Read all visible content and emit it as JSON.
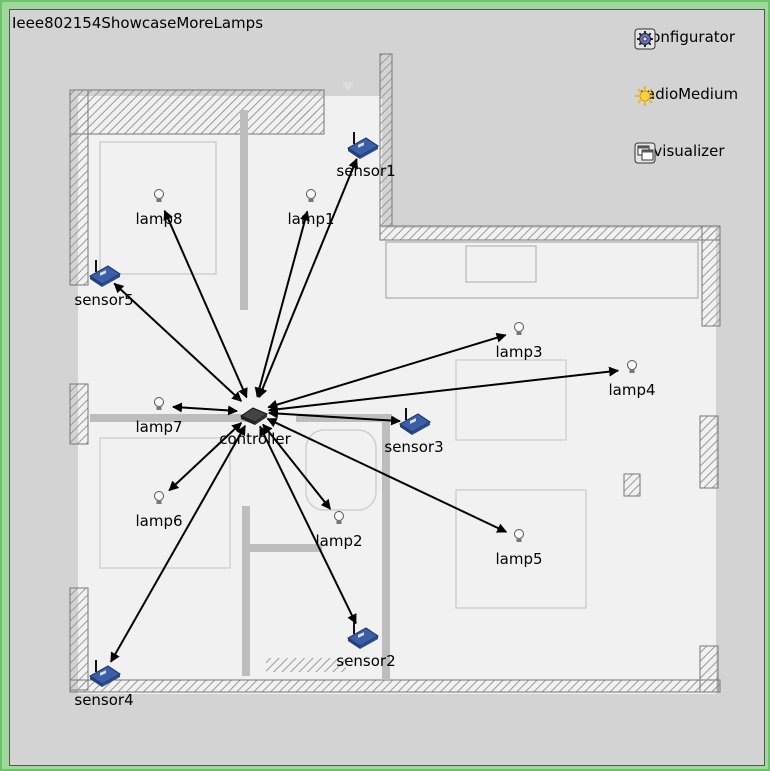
{
  "network": {
    "title": "Ieee802154ShowcaseMoreLamps"
  },
  "tools": [
    {
      "id": "configurator",
      "label": "configurator",
      "icon": "gear-icon"
    },
    {
      "id": "radioMedium",
      "label": "radioMedium",
      "icon": "sun-icon"
    },
    {
      "id": "visualizer",
      "label": "visualizer",
      "icon": "windows-icon"
    }
  ],
  "nodes": [
    {
      "id": "controller",
      "label": "controller",
      "kind": "router"
    },
    {
      "id": "sensor1",
      "label": "sensor1",
      "kind": "sensor"
    },
    {
      "id": "sensor2",
      "label": "sensor2",
      "kind": "sensor"
    },
    {
      "id": "sensor3",
      "label": "sensor3",
      "kind": "sensor"
    },
    {
      "id": "sensor4",
      "label": "sensor4",
      "kind": "sensor"
    },
    {
      "id": "sensor5",
      "label": "sensor5",
      "kind": "sensor"
    },
    {
      "id": "lamp1",
      "label": "lamp1",
      "kind": "lamp"
    },
    {
      "id": "lamp2",
      "label": "lamp2",
      "kind": "lamp"
    },
    {
      "id": "lamp3",
      "label": "lamp3",
      "kind": "lamp"
    },
    {
      "id": "lamp4",
      "label": "lamp4",
      "kind": "lamp"
    },
    {
      "id": "lamp5",
      "label": "lamp5",
      "kind": "lamp"
    },
    {
      "id": "lamp6",
      "label": "lamp6",
      "kind": "lamp"
    },
    {
      "id": "lamp7",
      "label": "lamp7",
      "kind": "lamp"
    },
    {
      "id": "lamp8",
      "label": "lamp8",
      "kind": "lamp"
    }
  ],
  "links": [
    {
      "from": "controller",
      "to": "sensor1"
    },
    {
      "from": "controller",
      "to": "sensor2"
    },
    {
      "from": "controller",
      "to": "sensor3"
    },
    {
      "from": "controller",
      "to": "sensor4"
    },
    {
      "from": "controller",
      "to": "sensor5"
    },
    {
      "from": "controller",
      "to": "lamp1"
    },
    {
      "from": "controller",
      "to": "lamp2"
    },
    {
      "from": "controller",
      "to": "lamp3"
    },
    {
      "from": "controller",
      "to": "lamp4"
    },
    {
      "from": "controller",
      "to": "lamp5"
    },
    {
      "from": "controller",
      "to": "lamp6"
    },
    {
      "from": "controller",
      "to": "lamp7"
    },
    {
      "from": "controller",
      "to": "lamp8"
    }
  ],
  "colors": {
    "background": "#d3d3d3",
    "border": "#9fd89a",
    "arrow": "#000000",
    "sensor_board": "#3a5ea8"
  }
}
